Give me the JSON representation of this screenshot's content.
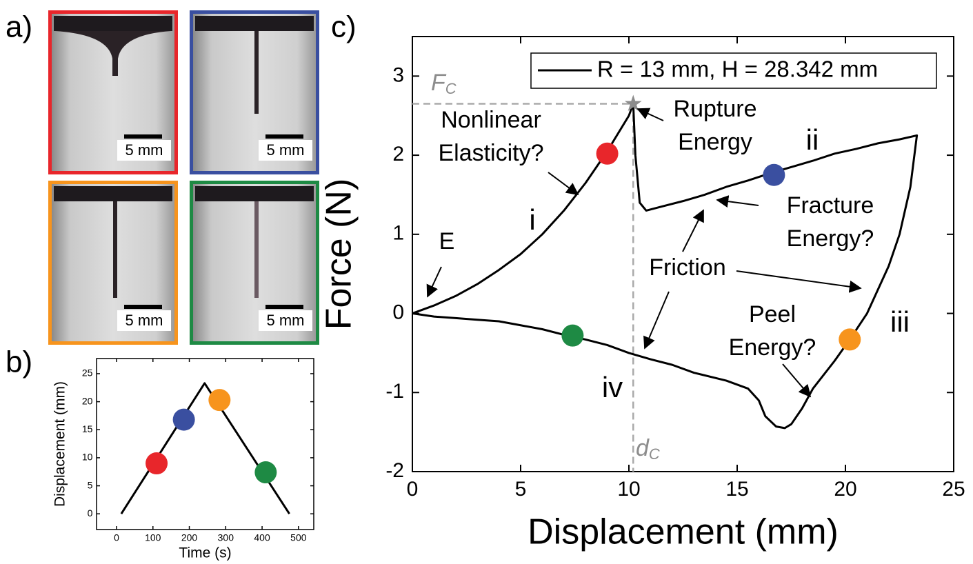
{
  "panel_labels": [
    "a)",
    "b)",
    "c)"
  ],
  "images": {
    "scale_bars": [
      "5 mm",
      "5 mm",
      "5 mm",
      "5 mm"
    ],
    "frame_colors": [
      "#e8262b",
      "#3a4fa0",
      "#f7941d",
      "#1e8a44"
    ]
  },
  "chart_data": [
    {
      "type": "line",
      "xlabel": "Time (s)",
      "ylabel": "Displacement (mm)",
      "series": [
        {
          "color": "#000000",
          "x": [
            13,
            242,
            475
          ],
          "values": [
            0,
            23.3,
            0
          ]
        }
      ],
      "markers": {
        "x": [
          110,
          185,
          283,
          410
        ],
        "y": [
          9,
          16.8,
          20.3,
          7.4
        ],
        "colors": [
          "#e8262b",
          "#3a4fa0",
          "#f7941d",
          "#1e8a44"
        ]
      },
      "xlim": [
        -55,
        542
      ],
      "ylim": [
        -2.8,
        27.7
      ],
      "xticks": [
        0,
        100,
        200,
        300,
        400,
        500
      ],
      "yticks": [
        0,
        5,
        10,
        15,
        20,
        25
      ]
    },
    {
      "type": "line",
      "xlabel": "Displacement (mm)",
      "ylabel": "Force (N)",
      "series": [
        {
          "name": "R = 13 mm, H = 28.342 mm",
          "color": "#000000",
          "x": [
            0,
            1,
            2,
            3,
            4,
            5,
            6,
            7,
            8,
            9,
            10,
            10.2,
            10.3,
            10.5,
            10.8,
            11.5,
            12.5,
            13.5,
            14.5,
            15.5,
            16.5,
            17.5,
            18.5,
            19.5,
            20.5,
            21.5,
            22.5,
            23.3,
            23.0,
            22.5,
            22,
            21.5,
            21,
            20.2,
            19.5,
            18.5,
            18,
            17.5,
            17.2,
            16.8,
            16.3,
            16,
            15.5,
            14.5,
            13,
            12,
            11,
            10,
            9,
            8,
            7,
            6,
            5,
            4,
            3,
            2,
            1,
            0
          ],
          "values": [
            0,
            0.1,
            0.22,
            0.37,
            0.55,
            0.75,
            1.0,
            1.3,
            1.65,
            2.05,
            2.5,
            2.65,
            2.0,
            1.4,
            1.3,
            1.35,
            1.42,
            1.5,
            1.6,
            1.68,
            1.77,
            1.85,
            1.93,
            2.02,
            2.08,
            2.15,
            2.2,
            2.25,
            1.6,
            1.0,
            0.6,
            0.3,
            0.0,
            -0.33,
            -0.6,
            -0.95,
            -1.2,
            -1.4,
            -1.45,
            -1.43,
            -1.3,
            -1.1,
            -0.95,
            -0.85,
            -0.75,
            -0.65,
            -0.58,
            -0.5,
            -0.4,
            -0.33,
            -0.27,
            -0.2,
            -0.15,
            -0.1,
            -0.08,
            -0.06,
            -0.04,
            0
          ]
        }
      ],
      "markers": {
        "x": [
          9.0,
          16.7,
          20.2,
          7.4
        ],
        "y": [
          2.02,
          1.75,
          -0.33,
          -0.28
        ],
        "colors": [
          "#e8262b",
          "#3a4fa0",
          "#f7941d",
          "#1e8a44"
        ]
      },
      "critical_point": {
        "x": 10.2,
        "y": 2.65,
        "color": "#8c8c8c",
        "force_label": {
          "main": "F",
          "sub": "C"
        },
        "displacement_label": {
          "main": "d",
          "sub": "C"
        }
      },
      "annotations": [
        [
          "Nonlinear",
          "Elasticity?"
        ],
        [
          "Rupture",
          "Energy"
        ],
        [
          "ii"
        ],
        [
          "i"
        ],
        [
          "E"
        ],
        [
          "Fracture",
          "Energy?"
        ],
        [
          "Friction"
        ],
        [
          "Peel",
          "Energy?"
        ],
        [
          "iii"
        ],
        [
          "iv"
        ]
      ],
      "xlim": [
        0,
        25
      ],
      "ylim": [
        -2,
        3.5
      ],
      "xticks": [
        0,
        5,
        10,
        15,
        20,
        25
      ],
      "yticks": [
        -2,
        -1,
        0,
        1,
        2,
        3
      ]
    }
  ]
}
